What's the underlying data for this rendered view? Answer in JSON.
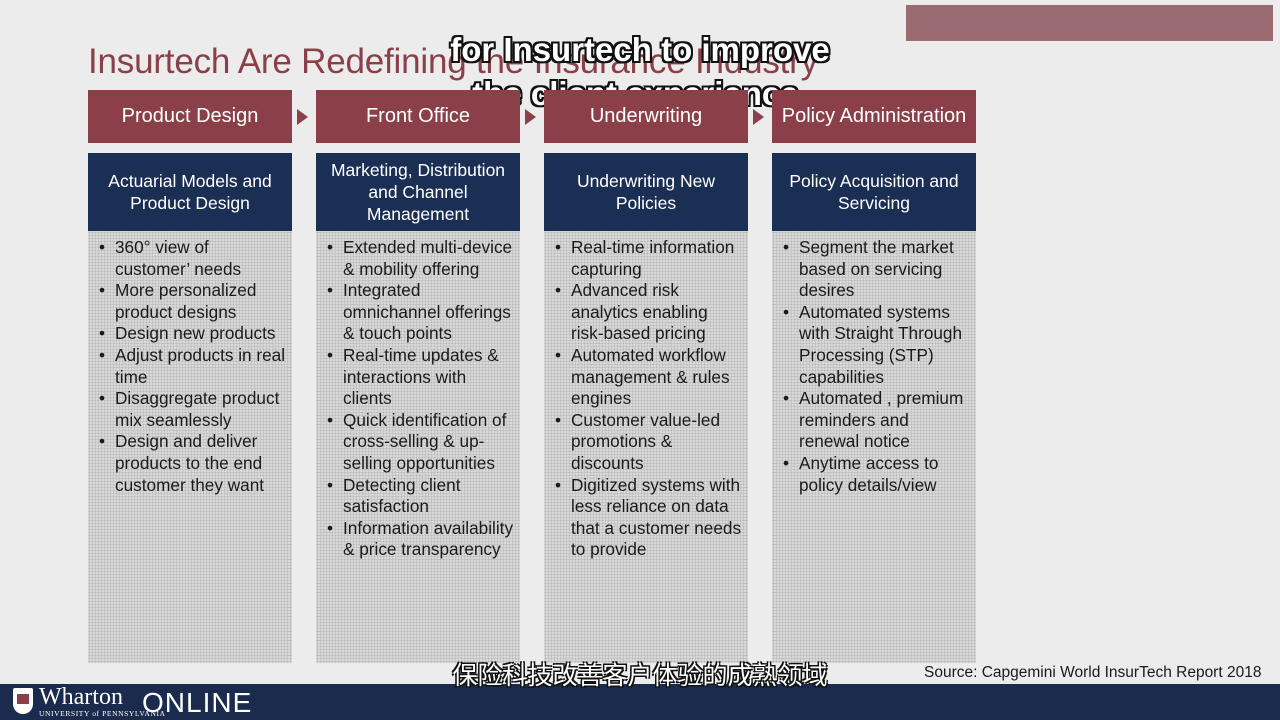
{
  "slide": {
    "title": "Insurtech Are Redefining the Insurance Industry",
    "source": "Source:  Capgemini World InsurTech Report 2018"
  },
  "subtitles": {
    "english_line1": "for Insurtech to improve",
    "english_line2": "the client experience.",
    "chinese": "保险科技改善客户体验的成熟领域"
  },
  "branding": {
    "wharton": "Wharton",
    "university": "UNIVERSITY of PENNSYLVANIA",
    "online": "ONLINE"
  },
  "colors": {
    "header_maroon": "#8b4049",
    "sub_navy": "#1b2f55",
    "body_gray": "#d8d8d8"
  },
  "stages": [
    {
      "header": "Product Design",
      "sub": "Actuarial Models and Product Design",
      "items": [
        "360° view of customer’ needs",
        "More personalized product designs",
        "Design new products",
        "Adjust products in real time",
        "Disaggregate product mix seamlessly",
        "Design and deliver products to the end customer they want"
      ]
    },
    {
      "header": "Front Office",
      "sub": "Marketing, Distribution and Channel Management",
      "items": [
        "Extended multi-device & mobility offering",
        "Integrated omnichannel offerings & touch points",
        "Real-time updates & interactions with clients",
        "Quick identification of cross-selling & up-selling opportunities",
        "Detecting client satisfaction",
        "Information availability & price transparency"
      ]
    },
    {
      "header": "Underwriting",
      "sub": "Underwriting New Policies",
      "items": [
        "Real-time information capturing",
        "Advanced risk analytics enabling risk-based pricing",
        "Automated workflow management & rules engines",
        "Customer value-led promotions & discounts",
        "Digitized systems with less reliance on data that a customer needs to provide"
      ]
    },
    {
      "header": "Policy Administration",
      "sub": "Policy Acquisition and Servicing",
      "items": [
        "Segment the market based on servicing desires",
        "Automated systems with Straight Through Processing (STP) capabilities",
        "Automated , premium reminders and renewal notice",
        "Anytime access to policy details/view"
      ]
    }
  ]
}
